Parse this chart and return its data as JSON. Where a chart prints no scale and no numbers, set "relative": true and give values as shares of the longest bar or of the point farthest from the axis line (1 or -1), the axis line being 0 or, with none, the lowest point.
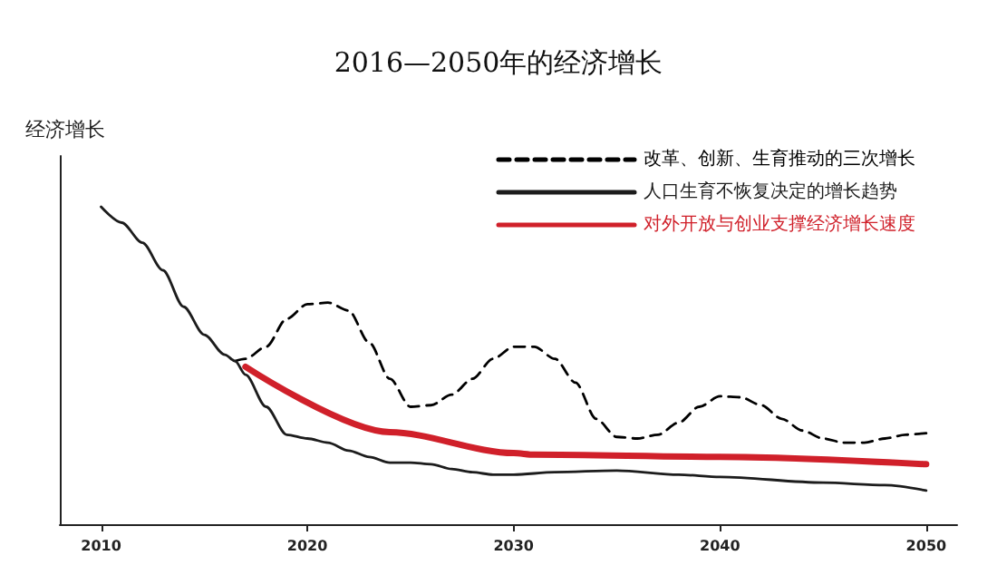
{
  "chart_data": {
    "type": "line",
    "title": "2016—2050年的经济增长",
    "ylabel": "经济增长",
    "relative": true,
    "xlim": [
      2008,
      2051.5
    ],
    "xticks": [
      2010,
      2020,
      2030,
      2040,
      2050
    ],
    "grid": false,
    "legend": "top right",
    "marker": "none",
    "series": [
      {
        "name": "改革、创新、生育推动的三次增长",
        "color": "#000000",
        "line_style": "dashed",
        "x": [
          2016.5,
          2017,
          2018,
          2019,
          2020,
          2021,
          2022,
          2023,
          2024,
          2025,
          2026,
          2027,
          2028,
          2029,
          2030,
          2031,
          2032,
          2033,
          2034,
          2035,
          2036,
          2037,
          2038,
          2039,
          2040,
          2041,
          2042,
          2043,
          2044,
          2045,
          2046,
          2047,
          2048,
          2049,
          2050
        ],
        "values": [
          0.514,
          0.521,
          0.559,
          0.647,
          0.693,
          0.698,
          0.673,
          0.572,
          0.458,
          0.37,
          0.375,
          0.408,
          0.458,
          0.521,
          0.559,
          0.559,
          0.521,
          0.446,
          0.332,
          0.275,
          0.27,
          0.282,
          0.32,
          0.37,
          0.403,
          0.4,
          0.375,
          0.332,
          0.295,
          0.27,
          0.257,
          0.257,
          0.27,
          0.282,
          0.287
        ]
      },
      {
        "name": "人口生育不恢复决定的增长趋势",
        "color": "#1c1c1c",
        "line_style": "solid",
        "x": [
          2010,
          2011,
          2012,
          2013,
          2014,
          2015,
          2016,
          2016.5,
          2017,
          2018,
          2019,
          2020,
          2021,
          2022,
          2023,
          2024,
          2025,
          2026,
          2027,
          2028,
          2029,
          2030,
          2032,
          2035,
          2038,
          2040,
          2045,
          2048,
          2050
        ],
        "values": [
          1.0,
          0.95,
          0.887,
          0.8,
          0.685,
          0.597,
          0.534,
          0.514,
          0.471,
          0.37,
          0.282,
          0.27,
          0.257,
          0.232,
          0.212,
          0.194,
          0.194,
          0.189,
          0.174,
          0.164,
          0.156,
          0.156,
          0.164,
          0.169,
          0.156,
          0.149,
          0.131,
          0.123,
          0.106
        ]
      },
      {
        "name": "对外开放与创业支撑经济增长速度",
        "color": "#d0202a",
        "line_style": "solid",
        "x": [
          2017,
          2024,
          2030,
          2031,
          2040,
          2050
        ],
        "values": [
          0.496,
          0.29,
          0.224,
          0.219,
          0.212,
          0.189
        ]
      }
    ]
  }
}
